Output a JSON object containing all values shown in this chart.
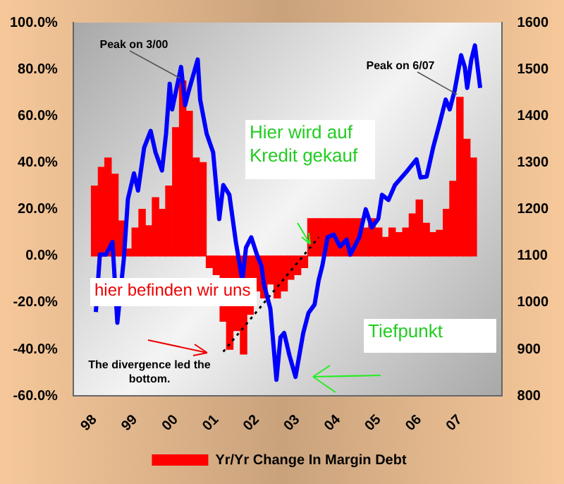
{
  "chart_data": {
    "type": "bar",
    "annotations": [
      {
        "text": "Peak on 3/00",
        "x": 2000.17,
        "y": 75
      },
      {
        "text": "Peak on 6/07",
        "x": 2007.0,
        "y": 68
      },
      "Hier wird auf Kredit gekauf",
      "hier befinden wir uns",
      "The divergence led the bottom.",
      "Tiefpunkt"
    ],
    "xlim": [
      1998,
      2007.5
    ],
    "xticks": [
      {
        "value": 1998,
        "label": "98"
      },
      {
        "value": 1999,
        "label": "99"
      },
      {
        "value": 2000,
        "label": "00"
      },
      {
        "value": 2001,
        "label": "01"
      },
      {
        "value": 2002,
        "label": "02"
      },
      {
        "value": 2003,
        "label": "03"
      },
      {
        "value": 2004,
        "label": "04"
      },
      {
        "value": 2005,
        "label": "05"
      },
      {
        "value": 2006,
        "label": "06"
      },
      {
        "value": 2007,
        "label": "07"
      }
    ],
    "ylim": [
      -60,
      100
    ],
    "yticks": [
      {
        "value": -60,
        "label": "-60.0%"
      },
      {
        "value": -40,
        "label": "-40.0%"
      },
      {
        "value": -20,
        "label": "-20.0%"
      },
      {
        "value": 0,
        "label": "0.0%"
      },
      {
        "value": 20,
        "label": "20.0%"
      },
      {
        "value": 40,
        "label": "40.0%"
      },
      {
        "value": 60,
        "label": "60.0%"
      },
      {
        "value": 80,
        "label": "80.0%"
      },
      {
        "value": 100,
        "label": "100.0%"
      }
    ],
    "y2lim": [
      800,
      1600
    ],
    "y2ticks": [
      800,
      900,
      1000,
      1100,
      1200,
      1300,
      1400,
      1500,
      1600
    ],
    "legend": "bottom",
    "series": [
      {
        "name": "Yr/Yr Change In Margin Debt",
        "color": "#ff0000",
        "x": [
          1998.0,
          1998.17,
          1998.33,
          1998.5,
          1998.67,
          1998.83,
          1999.0,
          1999.17,
          1999.33,
          1999.5,
          1999.67,
          1999.83,
          2000.0,
          2000.17,
          2000.33,
          2000.5,
          2000.67,
          2000.83,
          2001.0,
          2001.17,
          2001.33,
          2001.5,
          2001.67,
          2001.83,
          2002.0,
          2002.17,
          2002.33,
          2002.5,
          2002.67,
          2002.83,
          2003.0,
          2003.17,
          2003.33,
          2003.5,
          2003.67,
          2003.83,
          2004.0,
          2004.17,
          2004.33,
          2004.5,
          2004.67,
          2004.83,
          2005.0,
          2005.17,
          2005.33,
          2005.5,
          2005.67,
          2005.83,
          2006.0,
          2006.17,
          2006.33,
          2006.5,
          2006.67,
          2006.83,
          2007.0,
          2007.17,
          2007.33
        ],
        "values": [
          30,
          38,
          42,
          35,
          15,
          3,
          12,
          20,
          13,
          25,
          20,
          30,
          55,
          75,
          62,
          42,
          40,
          -5,
          -8,
          -28,
          -40,
          -32,
          -42,
          -25,
          -15,
          -18,
          -12,
          -18,
          -15,
          -10,
          -8,
          -5,
          16,
          16,
          16,
          16,
          16,
          16,
          16,
          16,
          12,
          16,
          12,
          8,
          12,
          10,
          12,
          18,
          24,
          14,
          10,
          11,
          20,
          32,
          68,
          50,
          42
        ]
      },
      {
        "type": "line",
        "axis": "y2",
        "color": "#0000ff",
        "x": [
          1998.03,
          1998.13,
          1998.28,
          1998.44,
          1998.56,
          1998.72,
          1998.82,
          1998.97,
          1999.07,
          1999.22,
          1999.38,
          1999.5,
          1999.66,
          1999.76,
          1999.85,
          1999.91,
          2000.13,
          2000.23,
          2000.32,
          2000.54,
          2000.6,
          2000.76,
          2000.92,
          2001.07,
          2001.17,
          2001.32,
          2001.48,
          2001.64,
          2001.73,
          2001.86,
          2002.01,
          2002.11,
          2002.17,
          2002.33,
          2002.48,
          2002.58,
          2002.67,
          2002.8,
          2002.95,
          2003.14,
          2003.27,
          2003.42,
          2003.52,
          2003.61,
          2003.74,
          2003.89,
          2004.05,
          2004.21,
          2004.3,
          2004.52,
          2004.68,
          2004.83,
          2004.99,
          2005.08,
          2005.24,
          2005.4,
          2005.71,
          2005.93,
          2006.03,
          2006.18,
          2006.34,
          2006.5,
          2006.65,
          2006.75,
          2006.87,
          2007.03,
          2007.12,
          2007.18,
          2007.28,
          2007.37,
          2007.5
        ],
        "values": [
          980,
          1103,
          1103,
          1130,
          957,
          1094,
          1222,
          1277,
          1240,
          1332,
          1368,
          1322,
          1283,
          1362,
          1469,
          1414,
          1505,
          1423,
          1454,
          1521,
          1435,
          1362,
          1322,
          1179,
          1252,
          1231,
          1130,
          1048,
          1118,
          1140,
          1100,
          1079,
          1040,
          987,
          835,
          926,
          935,
          887,
          841,
          935,
          978,
          996,
          1048,
          1079,
          1140,
          1146,
          1120,
          1135,
          1103,
          1140,
          1200,
          1161,
          1180,
          1231,
          1220,
          1252,
          1283,
          1307,
          1268,
          1270,
          1332,
          1384,
          1435,
          1414,
          1454,
          1530,
          1505,
          1460,
          1520,
          1551,
          1460
        ]
      },
      {
        "type": "line",
        "color": "#000000",
        "line_style": "dotted",
        "x": [
          2001.17,
          2003.52
        ],
        "values": [
          -41,
          8
        ]
      }
    ]
  }
}
